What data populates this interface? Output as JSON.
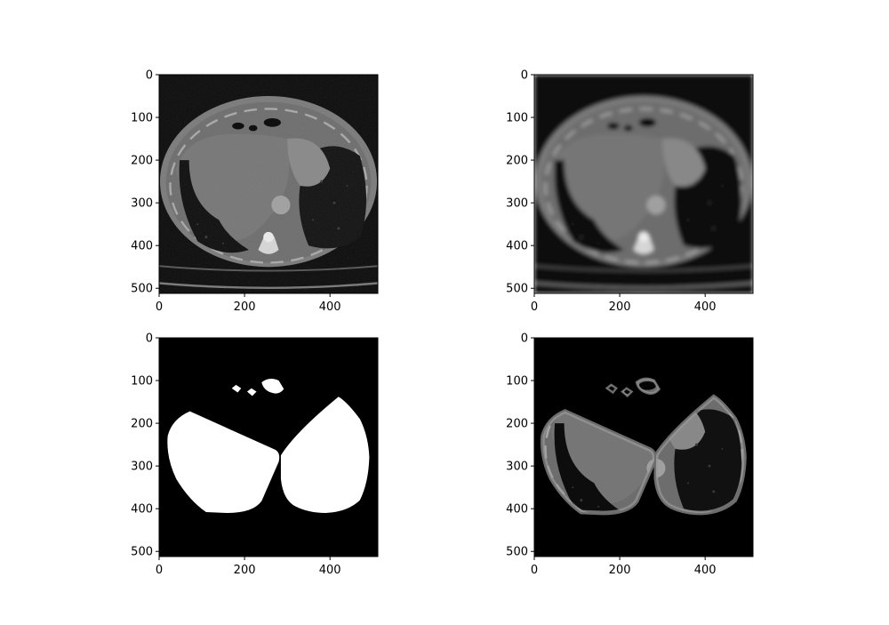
{
  "figure": {
    "panels": [
      {
        "id": "original-ct",
        "description_key": "axial CT slice, lung window",
        "xticks": [
          "0",
          "200",
          "400"
        ],
        "yticks": [
          "0",
          "100",
          "200",
          "300",
          "400",
          "500"
        ]
      },
      {
        "id": "blurred-ct",
        "description_key": "smoothed CT slice",
        "xticks": [
          "0",
          "200",
          "400"
        ],
        "yticks": [
          "0",
          "100",
          "200",
          "300",
          "400",
          "500"
        ]
      },
      {
        "id": "lung-mask",
        "description_key": "binary lung mask",
        "xticks": [
          "0",
          "200",
          "400"
        ],
        "yticks": [
          "0",
          "100",
          "200",
          "300",
          "400",
          "500"
        ]
      },
      {
        "id": "masked-ct",
        "description_key": "masked lung region",
        "xticks": [
          "0",
          "200",
          "400"
        ],
        "yticks": [
          "0",
          "100",
          "200",
          "300",
          "400",
          "500"
        ]
      }
    ],
    "colors": {
      "background": "#ffffff",
      "image_bg": "#000000",
      "mask": "#ffffff"
    }
  }
}
